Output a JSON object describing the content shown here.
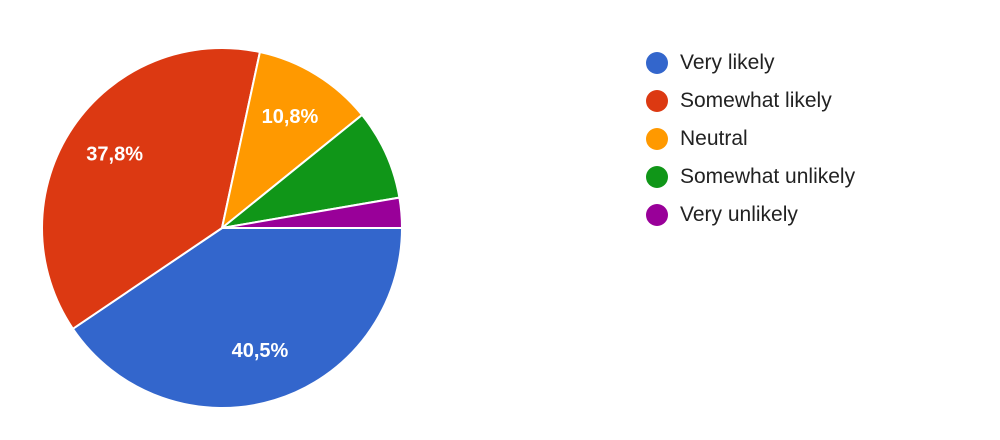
{
  "chart_data": {
    "type": "pie",
    "categories": [
      "Very likely",
      "Somewhat likely",
      "Neutral",
      "Somewhat unlikely",
      "Very unlikely"
    ],
    "values": [
      40.5,
      37.8,
      10.8,
      8.1,
      2.7
    ],
    "data_labels": [
      "40,5%",
      "37,8%",
      "10,8%",
      "",
      ""
    ],
    "colors": [
      "#3366cc",
      "#dc3912",
      "#ff9900",
      "#109618",
      "#990099"
    ],
    "start": "3 o'clock, clockwise",
    "legend_position": "right"
  }
}
